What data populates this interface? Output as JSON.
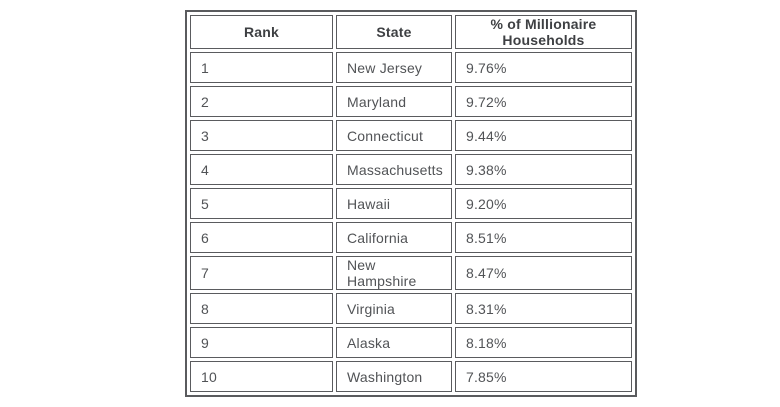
{
  "chart_data": {
    "type": "table",
    "title": "",
    "columns": [
      "Rank",
      "State",
      "% of Millionaire Households"
    ],
    "rows": [
      [
        "1",
        "New Jersey",
        "9.76%"
      ],
      [
        "2",
        "Maryland",
        "9.72%"
      ],
      [
        "3",
        "Connecticut",
        "9.44%"
      ],
      [
        "4",
        "Massachusetts",
        "9.38%"
      ],
      [
        "5",
        "Hawaii",
        "9.20%"
      ],
      [
        "6",
        "California",
        "8.51%"
      ],
      [
        "7",
        "New Hampshire",
        "8.47%"
      ],
      [
        "8",
        "Virginia",
        "8.31%"
      ],
      [
        "9",
        "Alaska",
        "8.18%"
      ],
      [
        "10",
        "Washington",
        "7.85%"
      ]
    ]
  },
  "colors": {
    "border": "#5a5b5e",
    "header_text": "#3e4043",
    "body_text": "#515356",
    "background": "#ffffff"
  }
}
